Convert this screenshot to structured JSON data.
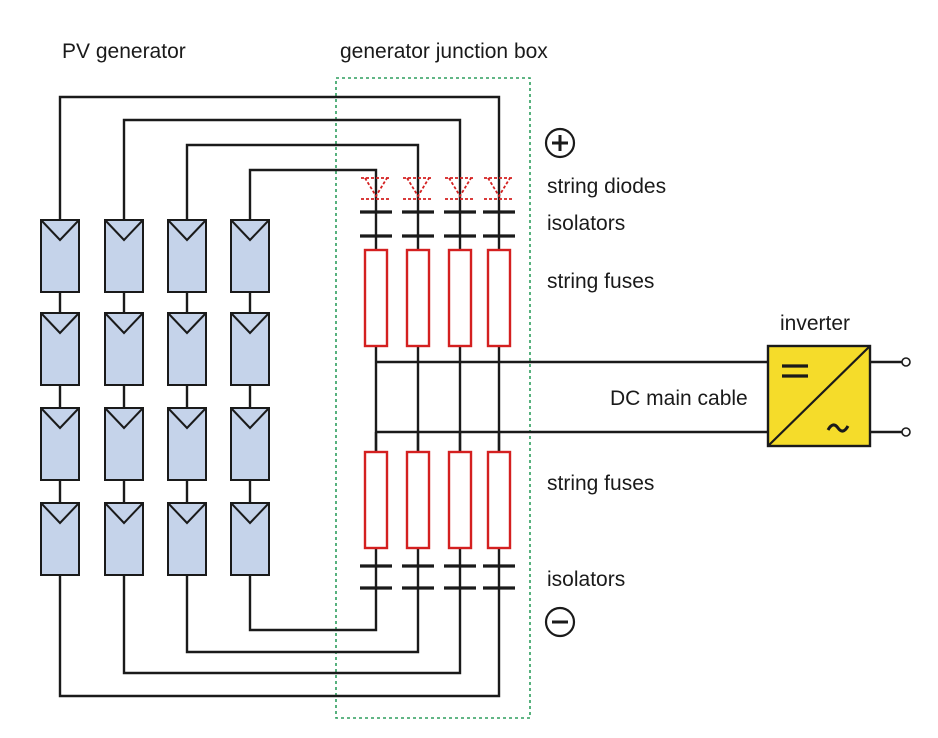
{
  "labels": {
    "pv_generator": "PV generator",
    "junction_box": "generator junction box",
    "string_diodes": "string diodes",
    "isolators_top": "isolators",
    "string_fuses_top": "string fuses",
    "inverter": "inverter",
    "dc_main_cable": "DC main cable",
    "string_fuses_bottom": "string fuses",
    "isolators_bottom": "isolators"
  },
  "strings": [
    {
      "modules": 4
    },
    {
      "modules": 4
    },
    {
      "modules": 4
    },
    {
      "modules": 4
    }
  ],
  "colors": {
    "module_fill": "#c5d3ea",
    "fuse_stroke": "#d42020",
    "diode_stroke": "#d42020",
    "junction_box_stroke": "#2e9e5e",
    "inverter_fill": "#f5dc2a",
    "wire": "#1a1a1a"
  }
}
